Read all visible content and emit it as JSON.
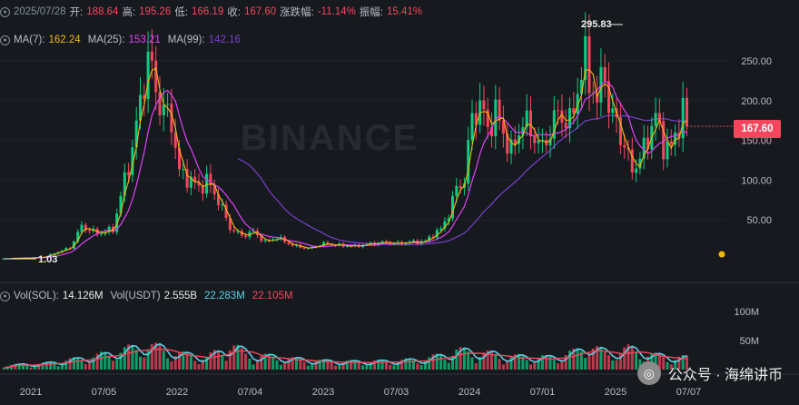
{
  "ohlc_bar": {
    "date": "2025/07/28",
    "open_label": "开:",
    "open": "188.64",
    "high_label": "高:",
    "high": "195.26",
    "low_label": "低:",
    "low": "166.19",
    "close_label": "收:",
    "close": "167.60",
    "change_label": "涨跌幅:",
    "change": "-11.14%",
    "amp_label": "振幅:",
    "amp": "15.41%"
  },
  "ma_bar": {
    "ma7_label": "MA(7):",
    "ma7": "162.24",
    "ma25_label": "MA(25):",
    "ma25": "153.21",
    "ma99_label": "MA(99):",
    "ma99": "142.16"
  },
  "vol_bar": {
    "sol_label": "Vol(SOL):",
    "sol": "14.126M",
    "usdt_label": "Vol(USDT)",
    "usdt": "2.555B",
    "a": "22.283M",
    "b": "22.105M"
  },
  "watermark": "BINANCE",
  "brand_text": "公众号 · 海绵讲币",
  "current_price": "167.60",
  "high_marker": "295.83",
  "low_marker": "1.03",
  "colors": {
    "up": "#0ecb81",
    "down": "#f6465d",
    "ma7": "#f0b90b",
    "ma25": "#e040fb",
    "ma99": "#7b3fd0",
    "vol_ma_a": "#5ad1e6",
    "vol_ma_b": "#f6465d"
  },
  "chart_data": {
    "type": "candlestick",
    "price_axis_ticks": [
      "250.00",
      "200.00",
      "150.00",
      "100.00",
      "50.00"
    ],
    "price_axis_values": [
      250,
      200,
      150,
      100,
      50
    ],
    "volume_axis_ticks": [
      "100M",
      "50M"
    ],
    "volume_axis_values": [
      100,
      50
    ],
    "x_ticks": [
      "2021",
      "07/05",
      "2022",
      "07/04",
      "2023",
      "07/03",
      "2024",
      "07/01",
      "2025",
      "07/07"
    ],
    "weeks_per_tick": 26,
    "close_keyframes": [
      [
        0,
        1.5
      ],
      [
        10,
        3
      ],
      [
        14,
        10
      ],
      [
        17,
        15
      ],
      [
        20,
        42
      ],
      [
        24,
        33
      ],
      [
        28,
        38
      ],
      [
        30,
        80
      ],
      [
        33,
        140
      ],
      [
        37,
        255
      ],
      [
        40,
        195
      ],
      [
        43,
        175
      ],
      [
        45,
        110
      ],
      [
        48,
        100
      ],
      [
        50,
        90
      ],
      [
        52,
        100
      ],
      [
        55,
        75
      ],
      [
        58,
        40
      ],
      [
        61,
        30
      ],
      [
        64,
        35
      ],
      [
        67,
        22
      ],
      [
        70,
        28
      ],
      [
        74,
        18
      ],
      [
        78,
        14
      ],
      [
        82,
        20
      ],
      [
        86,
        18
      ],
      [
        90,
        17
      ],
      [
        94,
        20
      ],
      [
        98,
        22
      ],
      [
        100,
        20
      ],
      [
        104,
        22
      ],
      [
        108,
        23
      ],
      [
        110,
        32
      ],
      [
        112,
        38
      ],
      [
        114,
        58
      ],
      [
        116,
        90
      ],
      [
        118,
        100
      ],
      [
        120,
        180
      ],
      [
        122,
        195
      ],
      [
        124,
        165
      ],
      [
        126,
        185
      ],
      [
        128,
        160
      ],
      [
        130,
        135
      ],
      [
        133,
        175
      ],
      [
        136,
        155
      ],
      [
        138,
        140
      ],
      [
        142,
        185
      ],
      [
        145,
        170
      ],
      [
        147,
        215
      ],
      [
        149,
        250
      ],
      [
        150,
        230
      ],
      [
        152,
        195
      ],
      [
        154,
        250
      ],
      [
        155,
        185
      ],
      [
        157,
        175
      ],
      [
        159,
        140
      ],
      [
        161,
        115
      ],
      [
        163,
        125
      ],
      [
        165,
        155
      ],
      [
        167,
        180
      ],
      [
        169,
        145
      ],
      [
        171,
        140
      ],
      [
        173,
        172
      ],
      [
        174,
        190
      ],
      [
        175,
        167.6
      ]
    ],
    "ma_period_short": 3,
    "ma_period_mid": 8,
    "ma_period_long": 30,
    "volume_keyframes_M": [
      [
        0,
        5
      ],
      [
        10,
        7
      ],
      [
        18,
        12
      ],
      [
        24,
        16
      ],
      [
        30,
        22
      ],
      [
        36,
        28
      ],
      [
        40,
        25
      ],
      [
        45,
        18
      ],
      [
        52,
        14
      ],
      [
        58,
        30
      ],
      [
        62,
        18
      ],
      [
        70,
        14
      ],
      [
        80,
        10
      ],
      [
        90,
        9
      ],
      [
        100,
        10
      ],
      [
        108,
        12
      ],
      [
        116,
        22
      ],
      [
        122,
        20
      ],
      [
        130,
        15
      ],
      [
        140,
        14
      ],
      [
        146,
        20
      ],
      [
        150,
        30
      ],
      [
        154,
        18
      ],
      [
        160,
        24
      ],
      [
        166,
        17
      ],
      [
        170,
        14
      ],
      [
        175,
        14
      ]
    ]
  }
}
